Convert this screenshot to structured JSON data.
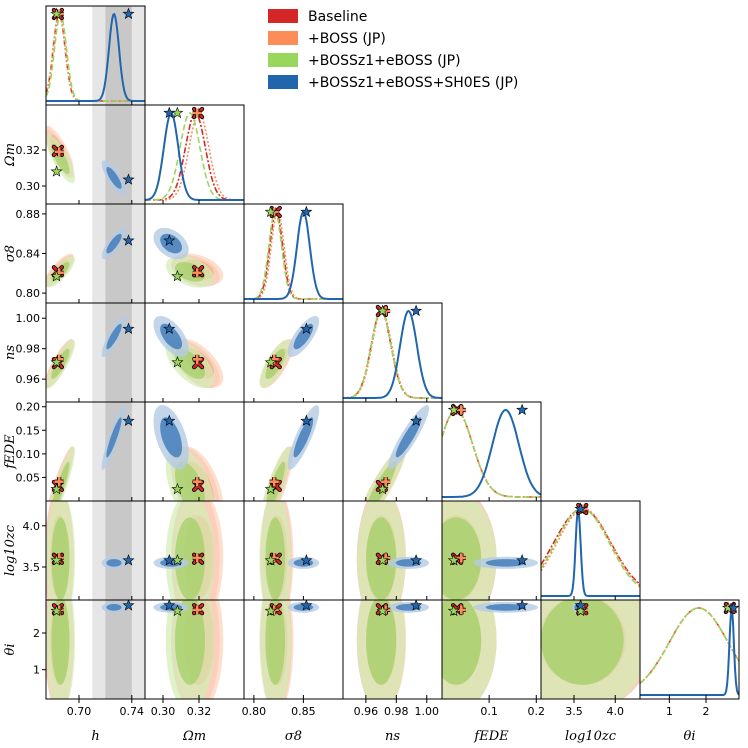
{
  "chart_data": {
    "type": "corner-triangle",
    "legend": {
      "location": "upper-right",
      "entries": [
        {
          "label": "Baseline",
          "color": "#d62728"
        },
        {
          "label": "+BOSS (JP)",
          "color": "#fc8d59"
        },
        {
          "label": "+BOSSz1+eBOSS (JP)",
          "color": "#99d65c"
        },
        {
          "label": "+BOSSz1+eBOSS+SH0ES (JP)",
          "color": "#2166ac"
        }
      ]
    },
    "parameters": [
      {
        "key": "h",
        "label": "h",
        "range": [
          0.675,
          0.75
        ],
        "ticks": [
          0.7,
          0.74
        ],
        "tick_labels": [
          "0.70",
          "0.74"
        ]
      },
      {
        "key": "Om",
        "label": "Ωm",
        "range": [
          0.29,
          0.345
        ],
        "ticks": [
          0.3,
          0.32
        ],
        "tick_labels": [
          "0.30",
          "0.32"
        ]
      },
      {
        "key": "s8",
        "label": "σ8",
        "range": [
          0.79,
          0.89
        ],
        "ticks": [
          0.8,
          0.84,
          0.88
        ],
        "tick_labels": [
          "0.80",
          "0.84",
          "0.88"
        ],
        "bottom_ticks": [
          0.8,
          0.85
        ],
        "bottom_tick_labels": [
          "0.80",
          "0.85"
        ]
      },
      {
        "key": "ns",
        "label": "ns",
        "range": [
          0.945,
          1.01
        ],
        "ticks": [
          0.96,
          0.98,
          1.0
        ],
        "tick_labels": [
          "0.96",
          "0.98",
          "1.00"
        ]
      },
      {
        "key": "fEDE",
        "label": "fEDE",
        "range": [
          0.0,
          0.21
        ],
        "ticks": [
          0.05,
          0.1,
          0.15,
          0.2
        ],
        "tick_labels": [
          "0.05",
          "0.10",
          "0.15",
          "0.20"
        ],
        "bottom_ticks": [
          0.1,
          0.2
        ],
        "bottom_tick_labels": [
          "0.1",
          "0.2"
        ]
      },
      {
        "key": "logzc",
        "label": "log10zc",
        "range": [
          3.1,
          4.3
        ],
        "ticks": [
          3.5,
          4.0
        ],
        "tick_labels": [
          "3.5",
          "4.0"
        ]
      },
      {
        "key": "theta",
        "label": "θi",
        "range": [
          0.2,
          2.9
        ],
        "ticks": [
          1,
          2
        ],
        "tick_labels": [
          "1",
          "2"
        ]
      }
    ],
    "h0es_band": {
      "center": 0.73,
      "sigma": 0.01
    },
    "best_fit_markers": [
      {
        "name": "Baseline",
        "symbol": "cross",
        "color": "#d62728",
        "values": {
          "h": 0.684,
          "Om": 0.3195,
          "s8": 0.8221,
          "ns": 0.9705,
          "fEDE": 0.032,
          "logzc": 3.6,
          "theta": 2.65
        }
      },
      {
        "name": "+BOSS (JP)",
        "symbol": "plus",
        "color": "#fc8d59",
        "values": {
          "h": 0.685,
          "Om": 0.319,
          "s8": 0.8205,
          "ns": 0.973,
          "fEDE": 0.041,
          "logzc": 3.61,
          "theta": 2.63
        }
      },
      {
        "name": "+BOSSz1+eBOSS (JP)",
        "symbol": "star",
        "color": "#99d65c",
        "values": {
          "h": 0.683,
          "Om": 0.308,
          "s8": 0.817,
          "ns": 0.971,
          "fEDE": 0.025,
          "logzc": 3.58,
          "theta": 2.6
        }
      },
      {
        "name": "+BOSSz1+eBOSS+SH0ES (JP)",
        "symbol": "star",
        "color": "#2166ac",
        "values": {
          "h": 0.7375,
          "Om": 0.3035,
          "s8": 0.853,
          "ns": 0.993,
          "fEDE": 0.17,
          "logzc": 3.58,
          "theta": 2.75
        }
      }
    ],
    "posteriors": [
      {
        "name": "Baseline",
        "color": "#d62728",
        "style": "dashdot",
        "mean": {
          "h": 0.685,
          "Om": 0.318,
          "s8": 0.8225,
          "ns": 0.97,
          "fEDE": 0.03,
          "logzc": 3.6,
          "theta": 1.8
        },
        "sd": {
          "h": 0.0045,
          "Om": 0.0055,
          "s8": 0.0065,
          "ns": 0.0065,
          "fEDE": 0.035,
          "logzc": 0.35,
          "theta": 0.8
        }
      },
      {
        "name": "+BOSS (JP)",
        "color": "#fc8d59",
        "style": "dotted",
        "mean": {
          "h": 0.685,
          "Om": 0.32,
          "s8": 0.824,
          "ns": 0.9705,
          "fEDE": 0.03,
          "logzc": 3.62,
          "theta": 1.8
        },
        "sd": {
          "h": 0.0045,
          "Om": 0.0055,
          "s8": 0.0065,
          "ns": 0.0065,
          "fEDE": 0.035,
          "logzc": 0.33,
          "theta": 0.8
        }
      },
      {
        "name": "+BOSSz1+eBOSS (JP)",
        "color": "#99d65c",
        "style": "dashed",
        "mean": {
          "h": 0.686,
          "Om": 0.315,
          "s8": 0.8215,
          "ns": 0.97,
          "fEDE": 0.03,
          "logzc": 3.6,
          "theta": 1.8
        },
        "sd": {
          "h": 0.0045,
          "Om": 0.0055,
          "s8": 0.0065,
          "ns": 0.0065,
          "fEDE": 0.035,
          "logzc": 0.33,
          "theta": 0.8
        }
      },
      {
        "name": "+BOSSz1+eBOSS+SH0ES (JP)",
        "color": "#2166ac",
        "style": "solid",
        "mean": {
          "h": 0.7265,
          "Om": 0.3045,
          "s8": 0.85,
          "ns": 0.988,
          "fEDE": 0.135,
          "logzc": 3.55,
          "theta": 2.7
        },
        "sd": {
          "h": 0.0038,
          "Om": 0.004,
          "s8": 0.0065,
          "ns": 0.0055,
          "fEDE": 0.028,
          "logzc": 0.03,
          "theta": 0.06
        }
      }
    ]
  }
}
